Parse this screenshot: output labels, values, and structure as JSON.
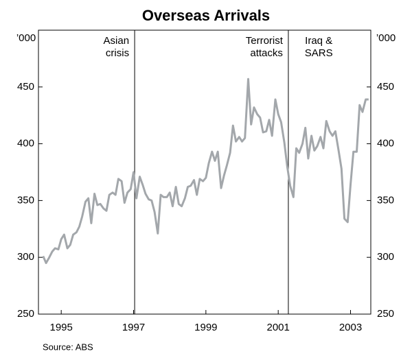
{
  "chart_data": {
    "type": "line",
    "title": "Overseas Arrivals",
    "y_unit": "’000",
    "source": "Source: ABS",
    "x": [
      1994.5,
      1994.58,
      1994.67,
      1994.75,
      1994.83,
      1994.92,
      1995.0,
      1995.08,
      1995.17,
      1995.25,
      1995.33,
      1995.42,
      1995.5,
      1995.58,
      1995.67,
      1995.75,
      1995.83,
      1995.92,
      1996.0,
      1996.08,
      1996.17,
      1996.25,
      1996.33,
      1996.42,
      1996.5,
      1996.58,
      1996.67,
      1996.75,
      1996.83,
      1996.92,
      1997.0,
      1997.08,
      1997.17,
      1997.25,
      1997.33,
      1997.42,
      1997.5,
      1997.58,
      1997.67,
      1997.75,
      1997.83,
      1997.92,
      1998.0,
      1998.08,
      1998.17,
      1998.25,
      1998.33,
      1998.42,
      1998.5,
      1998.58,
      1998.67,
      1998.75,
      1998.83,
      1998.92,
      1999.0,
      1999.08,
      1999.17,
      1999.25,
      1999.33,
      1999.42,
      1999.5,
      1999.58,
      1999.67,
      1999.75,
      1999.83,
      1999.92,
      2000.0,
      2000.08,
      2000.17,
      2000.25,
      2000.33,
      2000.42,
      2000.5,
      2000.58,
      2000.67,
      2000.75,
      2000.83,
      2000.92,
      2001.0,
      2001.08,
      2001.17,
      2001.25,
      2001.33,
      2001.42,
      2001.5,
      2001.58,
      2001.67,
      2001.75,
      2001.83,
      2001.92,
      2002.0,
      2002.08,
      2002.17,
      2002.25,
      2002.33,
      2002.42,
      2002.5,
      2002.58,
      2002.67,
      2002.75,
      2002.83,
      2002.92,
      2003.0,
      2003.08,
      2003.17,
      2003.25,
      2003.33,
      2003.42,
      2003.5
    ],
    "series": [
      {
        "name": "Overseas arrivals",
        "color": "#a3a7ab",
        "values": [
          301,
          295,
          300,
          305,
          308,
          307,
          316,
          320,
          308,
          311,
          320,
          322,
          327,
          336,
          349,
          352,
          330,
          356,
          346,
          347,
          343,
          341,
          355,
          357,
          355,
          369,
          367,
          348,
          357,
          360,
          375,
          352,
          371,
          364,
          356,
          351,
          350,
          340,
          321,
          355,
          353,
          353,
          357,
          345,
          362,
          347,
          345,
          352,
          362,
          363,
          368,
          355,
          369,
          367,
          370,
          383,
          393,
          385,
          393,
          361,
          372,
          381,
          392,
          416,
          402,
          406,
          402,
          405,
          457,
          417,
          432,
          426,
          423,
          410,
          411,
          421,
          407,
          439,
          426,
          419,
          401,
          380,
          363,
          353,
          396,
          392,
          400,
          414,
          387,
          407,
          394,
          398,
          406,
          396,
          420,
          411,
          407,
          411,
          394,
          378,
          334,
          331,
          364,
          393,
          393,
          434,
          428,
          439,
          439
        ]
      }
    ],
    "xlim": [
      1994.37,
      2003.56
    ],
    "xticks": [
      1995,
      1997,
      1999,
      2001,
      2003
    ],
    "ylim": [
      250,
      500
    ],
    "yticks": [
      250,
      300,
      350,
      400,
      450
    ],
    "annotations": [
      {
        "text": [
          "Asian",
          "crisis"
        ],
        "x": 1997.03
      },
      {
        "text": [
          "Terrorist",
          "attacks"
        ],
        "x": 2001.28
      },
      {
        "text": [
          "Iraq &",
          "SARS"
        ],
        "x": 2002.5
      }
    ],
    "vlines": [
      1997.03,
      2001.28
    ]
  }
}
